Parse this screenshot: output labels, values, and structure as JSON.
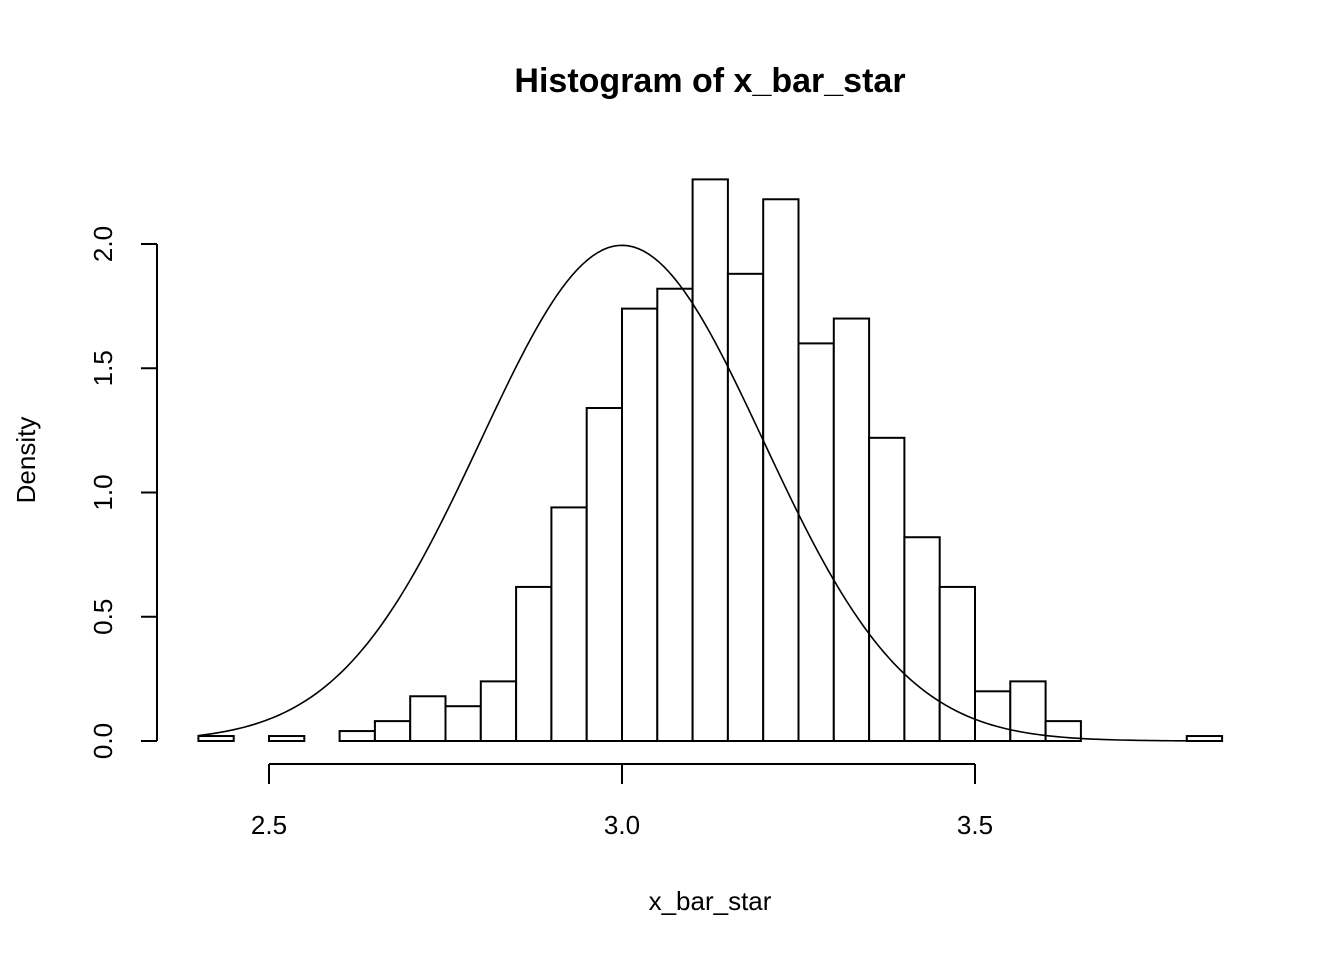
{
  "chart_data": {
    "type": "bar",
    "subtype": "histogram",
    "title": "Histogram of x_bar_star",
    "xlabel": "x_bar_star",
    "ylabel": "Density",
    "xlim": [
      2.38,
      3.87
    ],
    "ylim": [
      0,
      2.3
    ],
    "x_ticks": [
      2.5,
      3.0,
      3.5
    ],
    "x_tick_labels": [
      "2.5",
      "3.0",
      "3.5"
    ],
    "y_ticks": [
      0,
      0.5,
      1.0,
      1.5,
      2.0
    ],
    "y_tick_labels": [
      "0.0",
      "0.5",
      "1.0",
      "1.5",
      "2.0"
    ],
    "grid": false,
    "bins": [
      {
        "x0": 2.4,
        "x1": 2.45,
        "density": 0.02
      },
      {
        "x0": 2.45,
        "x1": 2.5,
        "density": 0.0
      },
      {
        "x0": 2.5,
        "x1": 2.55,
        "density": 0.02
      },
      {
        "x0": 2.55,
        "x1": 2.6,
        "density": 0.0
      },
      {
        "x0": 2.6,
        "x1": 2.65,
        "density": 0.04
      },
      {
        "x0": 2.65,
        "x1": 2.7,
        "density": 0.08
      },
      {
        "x0": 2.7,
        "x1": 2.75,
        "density": 0.18
      },
      {
        "x0": 2.75,
        "x1": 2.8,
        "density": 0.14
      },
      {
        "x0": 2.8,
        "x1": 2.85,
        "density": 0.24
      },
      {
        "x0": 2.85,
        "x1": 2.9,
        "density": 0.62
      },
      {
        "x0": 2.9,
        "x1": 2.95,
        "density": 0.94
      },
      {
        "x0": 2.95,
        "x1": 3.0,
        "density": 1.34
      },
      {
        "x0": 3.0,
        "x1": 3.05,
        "density": 1.74
      },
      {
        "x0": 3.05,
        "x1": 3.1,
        "density": 1.82
      },
      {
        "x0": 3.1,
        "x1": 3.15,
        "density": 2.26
      },
      {
        "x0": 3.15,
        "x1": 3.2,
        "density": 1.88
      },
      {
        "x0": 3.2,
        "x1": 3.25,
        "density": 2.18
      },
      {
        "x0": 3.25,
        "x1": 3.3,
        "density": 1.6
      },
      {
        "x0": 3.3,
        "x1": 3.35,
        "density": 1.7
      },
      {
        "x0": 3.35,
        "x1": 3.4,
        "density": 1.22
      },
      {
        "x0": 3.4,
        "x1": 3.45,
        "density": 0.82
      },
      {
        "x0": 3.45,
        "x1": 3.5,
        "density": 0.62
      },
      {
        "x0": 3.5,
        "x1": 3.55,
        "density": 0.2
      },
      {
        "x0": 3.55,
        "x1": 3.6,
        "density": 0.24
      },
      {
        "x0": 3.6,
        "x1": 3.65,
        "density": 0.08
      },
      {
        "x0": 3.65,
        "x1": 3.7,
        "density": 0.0
      },
      {
        "x0": 3.7,
        "x1": 3.75,
        "density": 0.0
      },
      {
        "x0": 3.75,
        "x1": 3.8,
        "density": 0.0
      },
      {
        "x0": 3.8,
        "x1": 3.85,
        "density": 0.02
      }
    ],
    "curve": {
      "type": "normal-density",
      "mean": 3.0,
      "sd": 0.2,
      "x_range": [
        2.4,
        3.85
      ]
    }
  }
}
